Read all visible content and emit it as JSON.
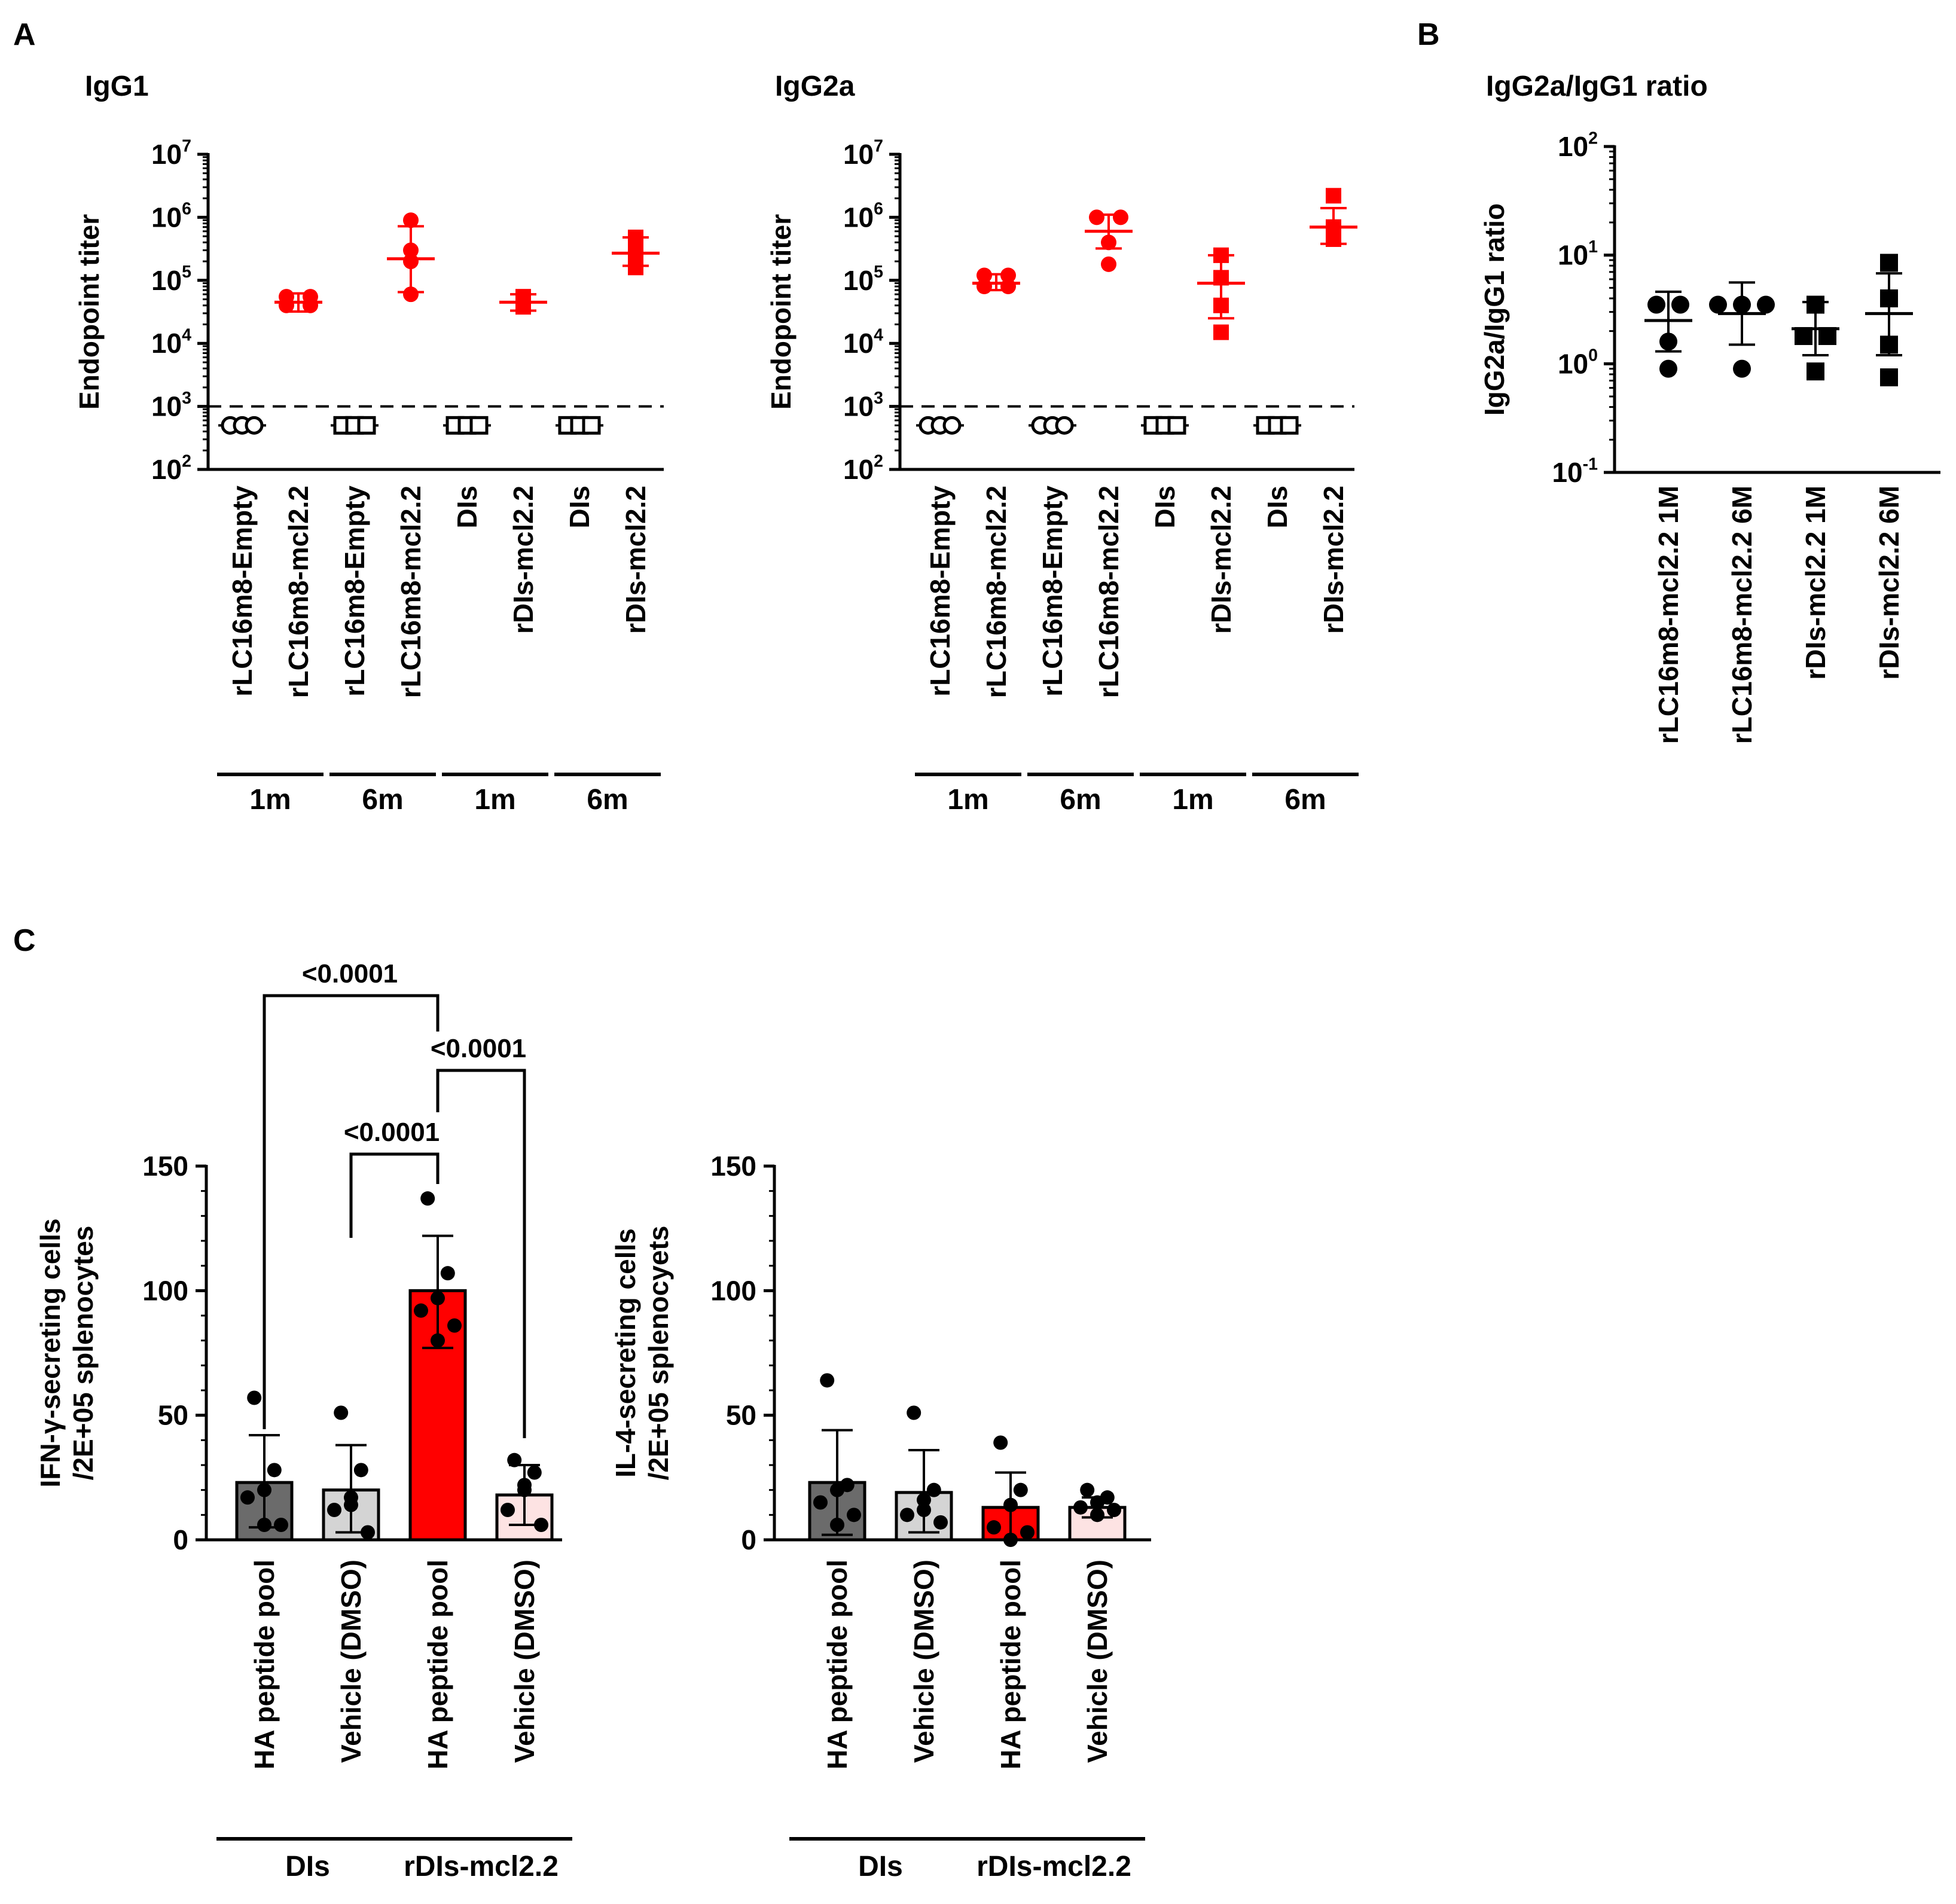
{
  "panel_labels": {
    "a": "A",
    "b": "B",
    "c": "C"
  },
  "colors": {
    "red": "#ff0000",
    "axis": "#000000",
    "bar_dark_gray": "#6b6b6b",
    "bar_light_gray": "#d4d4d4",
    "bar_red": "#ff0000",
    "bar_pink": "#fde3e3"
  },
  "chart_data": [
    {
      "id": "igg1",
      "type": "scatter",
      "title": "IgG1",
      "ylabel": "Endopoint titer",
      "yscale": "log",
      "ylim": [
        100,
        10000000
      ],
      "yticks": [
        {
          "base": "10",
          "exp": "2"
        },
        {
          "base": "10",
          "exp": "3"
        },
        {
          "base": "10",
          "exp": "4"
        },
        {
          "base": "10",
          "exp": "5"
        },
        {
          "base": "10",
          "exp": "6"
        },
        {
          "base": "10",
          "exp": "7"
        }
      ],
      "detection_limit": 1000,
      "categories": [
        "rLC16m8-Empty",
        "rLC16m8-mcl2.2",
        "rLC16m8-Empty",
        "rLC16m8-mcl2.2",
        "DIs",
        "rDIs-mcl2.2",
        "DIs",
        "rDIs-mcl2.2"
      ],
      "groups": [
        {
          "label": "1m",
          "range": [
            0,
            1
          ]
        },
        {
          "label": "6m",
          "range": [
            2,
            3
          ]
        },
        {
          "label": "1m",
          "range": [
            4,
            5
          ]
        },
        {
          "label": "6m",
          "range": [
            6,
            7
          ]
        }
      ],
      "series": [
        {
          "marker": "open-circle",
          "color": "#000000",
          "mean": 500,
          "points": [
            500,
            500,
            500,
            500
          ]
        },
        {
          "marker": "filled-circle",
          "color": "#ff0000",
          "mean": 45000,
          "sd": [
            32000,
            62000
          ],
          "points": [
            55000,
            40000,
            40000,
            55000
          ]
        },
        {
          "marker": "open-square",
          "color": "#000000",
          "mean": 500,
          "points": [
            500,
            500,
            500,
            500
          ]
        },
        {
          "marker": "filled-circle",
          "color": "#ff0000",
          "mean": 220000,
          "sd": [
            65000,
            720000
          ],
          "points": [
            900000,
            300000,
            200000,
            60000
          ]
        },
        {
          "marker": "open-square",
          "color": "#000000",
          "mean": 500,
          "points": [
            500,
            500,
            500,
            500
          ]
        },
        {
          "marker": "filled-square",
          "color": "#ff0000",
          "mean": 45000,
          "sd": [
            33000,
            60000
          ],
          "points": [
            55000,
            45000,
            38000,
            52000
          ]
        },
        {
          "marker": "open-square",
          "color": "#000000",
          "mean": 500,
          "points": [
            500,
            500,
            500,
            500
          ]
        },
        {
          "marker": "filled-square",
          "color": "#ff0000",
          "mean": 270000,
          "sd": [
            170000,
            480000
          ],
          "points": [
            480000,
            280000,
            250000,
            160000
          ]
        }
      ]
    },
    {
      "id": "igg2a",
      "type": "scatter",
      "title": "IgG2a",
      "ylabel": "Endopoint titer",
      "yscale": "log",
      "ylim": [
        100,
        10000000
      ],
      "yticks": [
        {
          "base": "10",
          "exp": "2"
        },
        {
          "base": "10",
          "exp": "3"
        },
        {
          "base": "10",
          "exp": "4"
        },
        {
          "base": "10",
          "exp": "5"
        },
        {
          "base": "10",
          "exp": "6"
        },
        {
          "base": "10",
          "exp": "7"
        }
      ],
      "detection_limit": 1000,
      "categories": [
        "rLC16m8-Empty",
        "rLC16m8-mcl2.2",
        "rLC16m8-Empty",
        "rLC16m8-mcl2.2",
        "DIs",
        "rDIs-mcl2.2",
        "DIs",
        "rDIs-mcl2.2"
      ],
      "groups": [
        {
          "label": "1m",
          "range": [
            0,
            1
          ]
        },
        {
          "label": "6m",
          "range": [
            2,
            3
          ]
        },
        {
          "label": "1m",
          "range": [
            4,
            5
          ]
        },
        {
          "label": "6m",
          "range": [
            6,
            7
          ]
        }
      ],
      "series": [
        {
          "marker": "open-circle",
          "color": "#000000",
          "mean": 500,
          "points": [
            500,
            500,
            500,
            500
          ]
        },
        {
          "marker": "filled-circle",
          "color": "#ff0000",
          "mean": 90000,
          "sd": [
            70000,
            125000
          ],
          "points": [
            120000,
            120000,
            80000,
            80000
          ]
        },
        {
          "marker": "open-circle",
          "color": "#000000",
          "mean": 500,
          "points": [
            500,
            500,
            500,
            500
          ]
        },
        {
          "marker": "filled-circle",
          "color": "#ff0000",
          "mean": 600000,
          "sd": [
            320000,
            1100000
          ],
          "points": [
            1000000,
            1000000,
            400000,
            180000
          ]
        },
        {
          "marker": "open-square",
          "color": "#000000",
          "mean": 500,
          "points": [
            500,
            500,
            500,
            500
          ]
        },
        {
          "marker": "filled-square",
          "color": "#ff0000",
          "mean": 90000,
          "sd": [
            25000,
            250000
          ],
          "points": [
            250000,
            110000,
            40000,
            15000
          ]
        },
        {
          "marker": "open-square",
          "color": "#000000",
          "mean": 500,
          "points": [
            500,
            500,
            500,
            500
          ]
        },
        {
          "marker": "filled-square",
          "color": "#ff0000",
          "mean": 700000,
          "sd": [
            380000,
            1400000
          ],
          "points": [
            2200000,
            700000,
            550000,
            450000
          ]
        }
      ]
    },
    {
      "id": "ratio",
      "type": "scatter",
      "title": "IgG2a/IgG1 ratio",
      "ylabel": "IgG2a/IgG1 ratio",
      "yscale": "log",
      "ylim": [
        0.1,
        100
      ],
      "yticks": [
        {
          "base": "10",
          "exp": "-1"
        },
        {
          "base": "10",
          "exp": "0"
        },
        {
          "base": "10",
          "exp": "1"
        },
        {
          "base": "10",
          "exp": "2"
        }
      ],
      "categories": [
        "rLC16m8-mcl2.2 1M",
        "rLC16m8-mcl2.2 6M",
        "rDIs-mcl2.2 1M",
        "rDIs-mcl2.2 6M"
      ],
      "series": [
        {
          "marker": "filled-circle",
          "color": "#000000",
          "mean": 2.5,
          "sd": [
            1.3,
            4.6
          ],
          "points": [
            3.5,
            3.5,
            1.6,
            0.9
          ]
        },
        {
          "marker": "filled-circle",
          "color": "#000000",
          "mean": 2.9,
          "sd": [
            1.5,
            5.6
          ],
          "points": [
            3.5,
            3.5,
            3.5,
            0.9
          ]
        },
        {
          "marker": "filled-square",
          "color": "#000000",
          "mean": 2.1,
          "sd": [
            1.2,
            3.7
          ],
          "points": [
            3.5,
            1.8,
            1.8,
            0.85
          ]
        },
        {
          "marker": "filled-square",
          "color": "#000000",
          "mean": 2.9,
          "sd": [
            1.2,
            6.8
          ],
          "points": [
            8.5,
            4.0,
            1.5,
            0.75
          ]
        }
      ]
    },
    {
      "id": "ifn",
      "type": "bar",
      "ylabel": [
        "IFN-γ-secreting cells",
        "/2E+05 splenocytes"
      ],
      "ylim": [
        0,
        150
      ],
      "yticks": [
        "0",
        "50",
        "100",
        "150"
      ],
      "categories": [
        "HA peptide pool",
        "Vehicle (DMSO)",
        "HA peptide pool",
        "Vehicle (DMSO)"
      ],
      "groups": [
        {
          "label": "DIs",
          "range": [
            0,
            1
          ]
        },
        {
          "label": "rDIs-mcl2.2",
          "range": [
            2,
            3
          ]
        }
      ],
      "bar_colors": [
        "#6b6b6b",
        "#d4d4d4",
        "#ff0000",
        "#fde3e3"
      ],
      "values": [
        23,
        20,
        100,
        18
      ],
      "sd_high": [
        42,
        38,
        122,
        30
      ],
      "sd_low": [
        5,
        3,
        77,
        6
      ],
      "points": [
        [
          57,
          28,
          20,
          17,
          6,
          6
        ],
        [
          51,
          28,
          17,
          12,
          3,
          14
        ],
        [
          137,
          107,
          97,
          92,
          86,
          80
        ],
        [
          32,
          27,
          22,
          12,
          6,
          20
        ]
      ],
      "comparisons": [
        {
          "from": 0,
          "to": 2,
          "label": "<0.0001"
        },
        {
          "from": 2,
          "to": 3,
          "label": "<0.0001"
        },
        {
          "from": 1,
          "to": 2,
          "label": "<0.0001"
        }
      ]
    },
    {
      "id": "il4",
      "type": "bar",
      "ylabel": [
        "IL-4-secreting cells",
        "/2E+05 splenocyets"
      ],
      "ylim": [
        0,
        150
      ],
      "yticks": [
        "0",
        "50",
        "100",
        "150"
      ],
      "categories": [
        "HA peptide pool",
        "Vehicle (DMSO)",
        "HA peptide pool",
        "Vehicle (DMSO)"
      ],
      "groups": [
        {
          "label": "DIs",
          "range": [
            0,
            1
          ]
        },
        {
          "label": "rDIs-mcl2.2",
          "range": [
            2,
            3
          ]
        }
      ],
      "bar_colors": [
        "#6b6b6b",
        "#d4d4d4",
        "#ff0000",
        "#fde3e3"
      ],
      "values": [
        23,
        19,
        13,
        13
      ],
      "sd_high": [
        44,
        36,
        27,
        17
      ],
      "sd_low": [
        2,
        3,
        0,
        9
      ],
      "points": [
        [
          64,
          22,
          20,
          15,
          10,
          6
        ],
        [
          51,
          20,
          16,
          10,
          7,
          12
        ],
        [
          39,
          20,
          14,
          5,
          3,
          0
        ],
        [
          20,
          17,
          15,
          13,
          12,
          10
        ]
      ]
    }
  ]
}
